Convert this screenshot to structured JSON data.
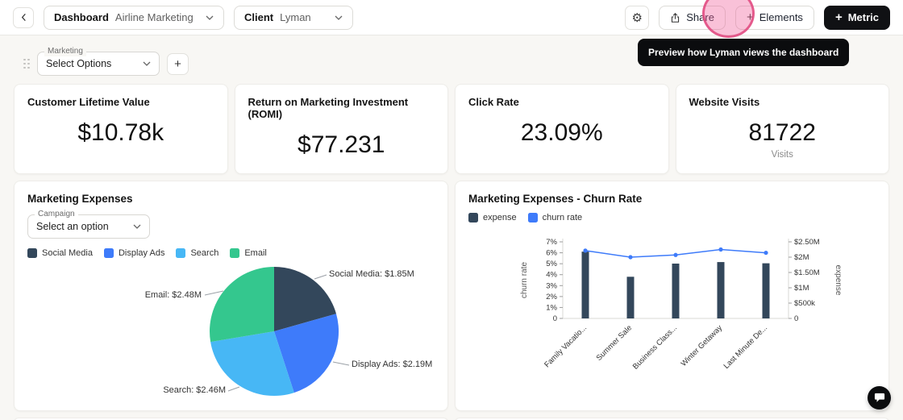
{
  "topbar": {
    "back_icon": "chevron-left",
    "dashboard": {
      "label": "Dashboard",
      "value": "Airline Marketing"
    },
    "client": {
      "label": "Client",
      "value": "Lyman"
    },
    "settings_icon": "gear",
    "share": {
      "label": "Share",
      "icon": "share-upload"
    },
    "elements": {
      "label": "Elements",
      "icon": "plus"
    },
    "metric": {
      "label": "Metric",
      "icon": "plus"
    },
    "share_tooltip": "Preview how Lyman views the dashboard"
  },
  "filter": {
    "label": "Marketing",
    "value": "Select Options",
    "add_icon": "plus",
    "drag_icon": "drag-grip"
  },
  "kpis": [
    {
      "title": "Customer Lifetime Value",
      "value": "$10.78k",
      "subtitle": ""
    },
    {
      "title": "Return on Marketing Investment (ROMI)",
      "value": "$77.231",
      "subtitle": ""
    },
    {
      "title": "Click Rate",
      "value": "23.09%",
      "subtitle": ""
    },
    {
      "title": "Website Visits",
      "value": "81722",
      "subtitle": "Visits"
    }
  ],
  "pie_panel": {
    "title": "Marketing Expenses",
    "campaign": {
      "label": "Campaign",
      "value": "Select an option"
    },
    "legend": [
      {
        "label": "Social Media",
        "color": "#33475b"
      },
      {
        "label": "Display Ads",
        "color": "#3e7bfa"
      },
      {
        "label": "Search",
        "color": "#47b7f5"
      },
      {
        "label": "Email",
        "color": "#34c78e"
      }
    ]
  },
  "combo_panel": {
    "title": "Marketing Expenses - Churn Rate",
    "legend": [
      {
        "label": "expense",
        "color": "#33475b"
      },
      {
        "label": "churn rate",
        "color": "#3e7bfa"
      }
    ]
  },
  "chart_data": [
    {
      "type": "pie",
      "title": "Marketing Expenses",
      "labels": [
        "Social Media",
        "Display Ads",
        "Search",
        "Email"
      ],
      "values": [
        1.85,
        2.19,
        2.46,
        2.48
      ],
      "unit": "$M",
      "data_labels": [
        "Social Media: $1.85M",
        "Display Ads: $2.19M",
        "Search: $2.46M",
        "Email: $2.48M"
      ],
      "colors": [
        "#33475b",
        "#3e7bfa",
        "#47b7f5",
        "#34c78e"
      ],
      "legend_position": "top"
    },
    {
      "type": "bar",
      "title": "Marketing Expenses - Churn Rate",
      "categories": [
        "Family Vacatio...",
        "Summer Sale",
        "Business Class...",
        "Winter Getaway",
        "Last Minute De..."
      ],
      "series": [
        {
          "name": "expense",
          "kind": "bar",
          "axis": "right",
          "unit": "$M",
          "values": [
            2.18,
            1.36,
            1.79,
            1.84,
            1.8
          ],
          "color": "#33475b"
        },
        {
          "name": "churn rate",
          "kind": "line",
          "axis": "left",
          "unit": "%",
          "values": [
            6.2,
            5.6,
            5.8,
            6.3,
            6.0
          ],
          "color": "#3e7bfa"
        }
      ],
      "left_axis": {
        "label": "churn rate",
        "min": 0,
        "max": 7,
        "ticks": [
          "7%",
          "6%",
          "5%",
          "4%",
          "3%",
          "2%",
          "1%",
          "0"
        ]
      },
      "right_axis": {
        "label": "expense",
        "min": 0,
        "max": 2.5,
        "ticks": [
          "$2.50M",
          "$2M",
          "$1.50M",
          "$1M",
          "$500k",
          "0"
        ]
      },
      "legend_position": "top",
      "grid": false
    }
  ],
  "annotation": {
    "type": "highlight-circle",
    "color": "#e0487f"
  },
  "chat_launcher_icon": "chat-bubble"
}
